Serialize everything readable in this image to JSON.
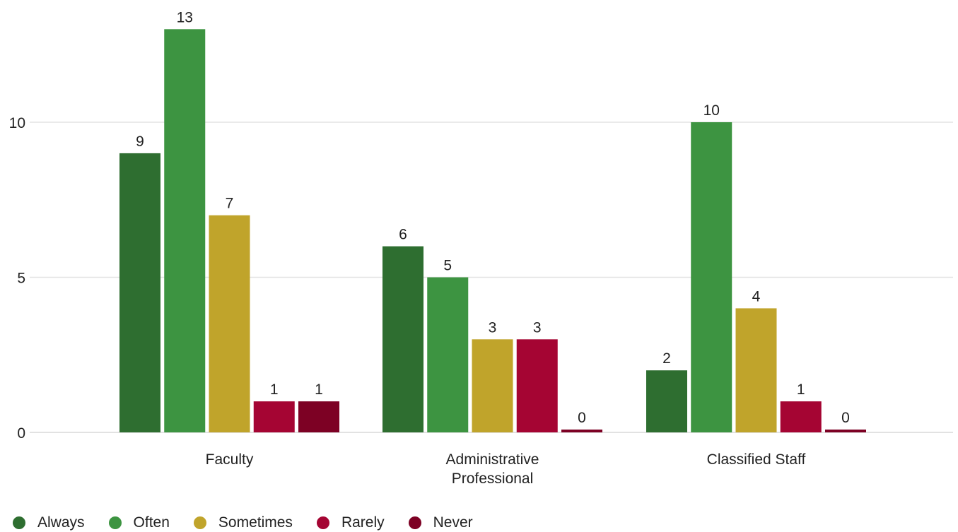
{
  "chart_data": {
    "type": "bar",
    "categories": [
      "Faculty",
      "Administrative Professional",
      "Classified Staff"
    ],
    "series": [
      {
        "name": "Always",
        "values": [
          9,
          6,
          2
        ],
        "color": "#2e6e30"
      },
      {
        "name": "Often",
        "values": [
          13,
          5,
          10
        ],
        "color": "#3d9441"
      },
      {
        "name": "Sometimes",
        "values": [
          7,
          3,
          4
        ],
        "color": "#c0a42b"
      },
      {
        "name": "Rarely",
        "values": [
          1,
          3,
          1
        ],
        "color": "#a50533"
      },
      {
        "name": "Never",
        "values": [
          1,
          0,
          0
        ],
        "color": "#7d0124"
      }
    ],
    "yticks": [
      0,
      5,
      10
    ],
    "ylim": [
      0,
      13
    ],
    "grid": true,
    "legend_position": "bottom-left"
  }
}
